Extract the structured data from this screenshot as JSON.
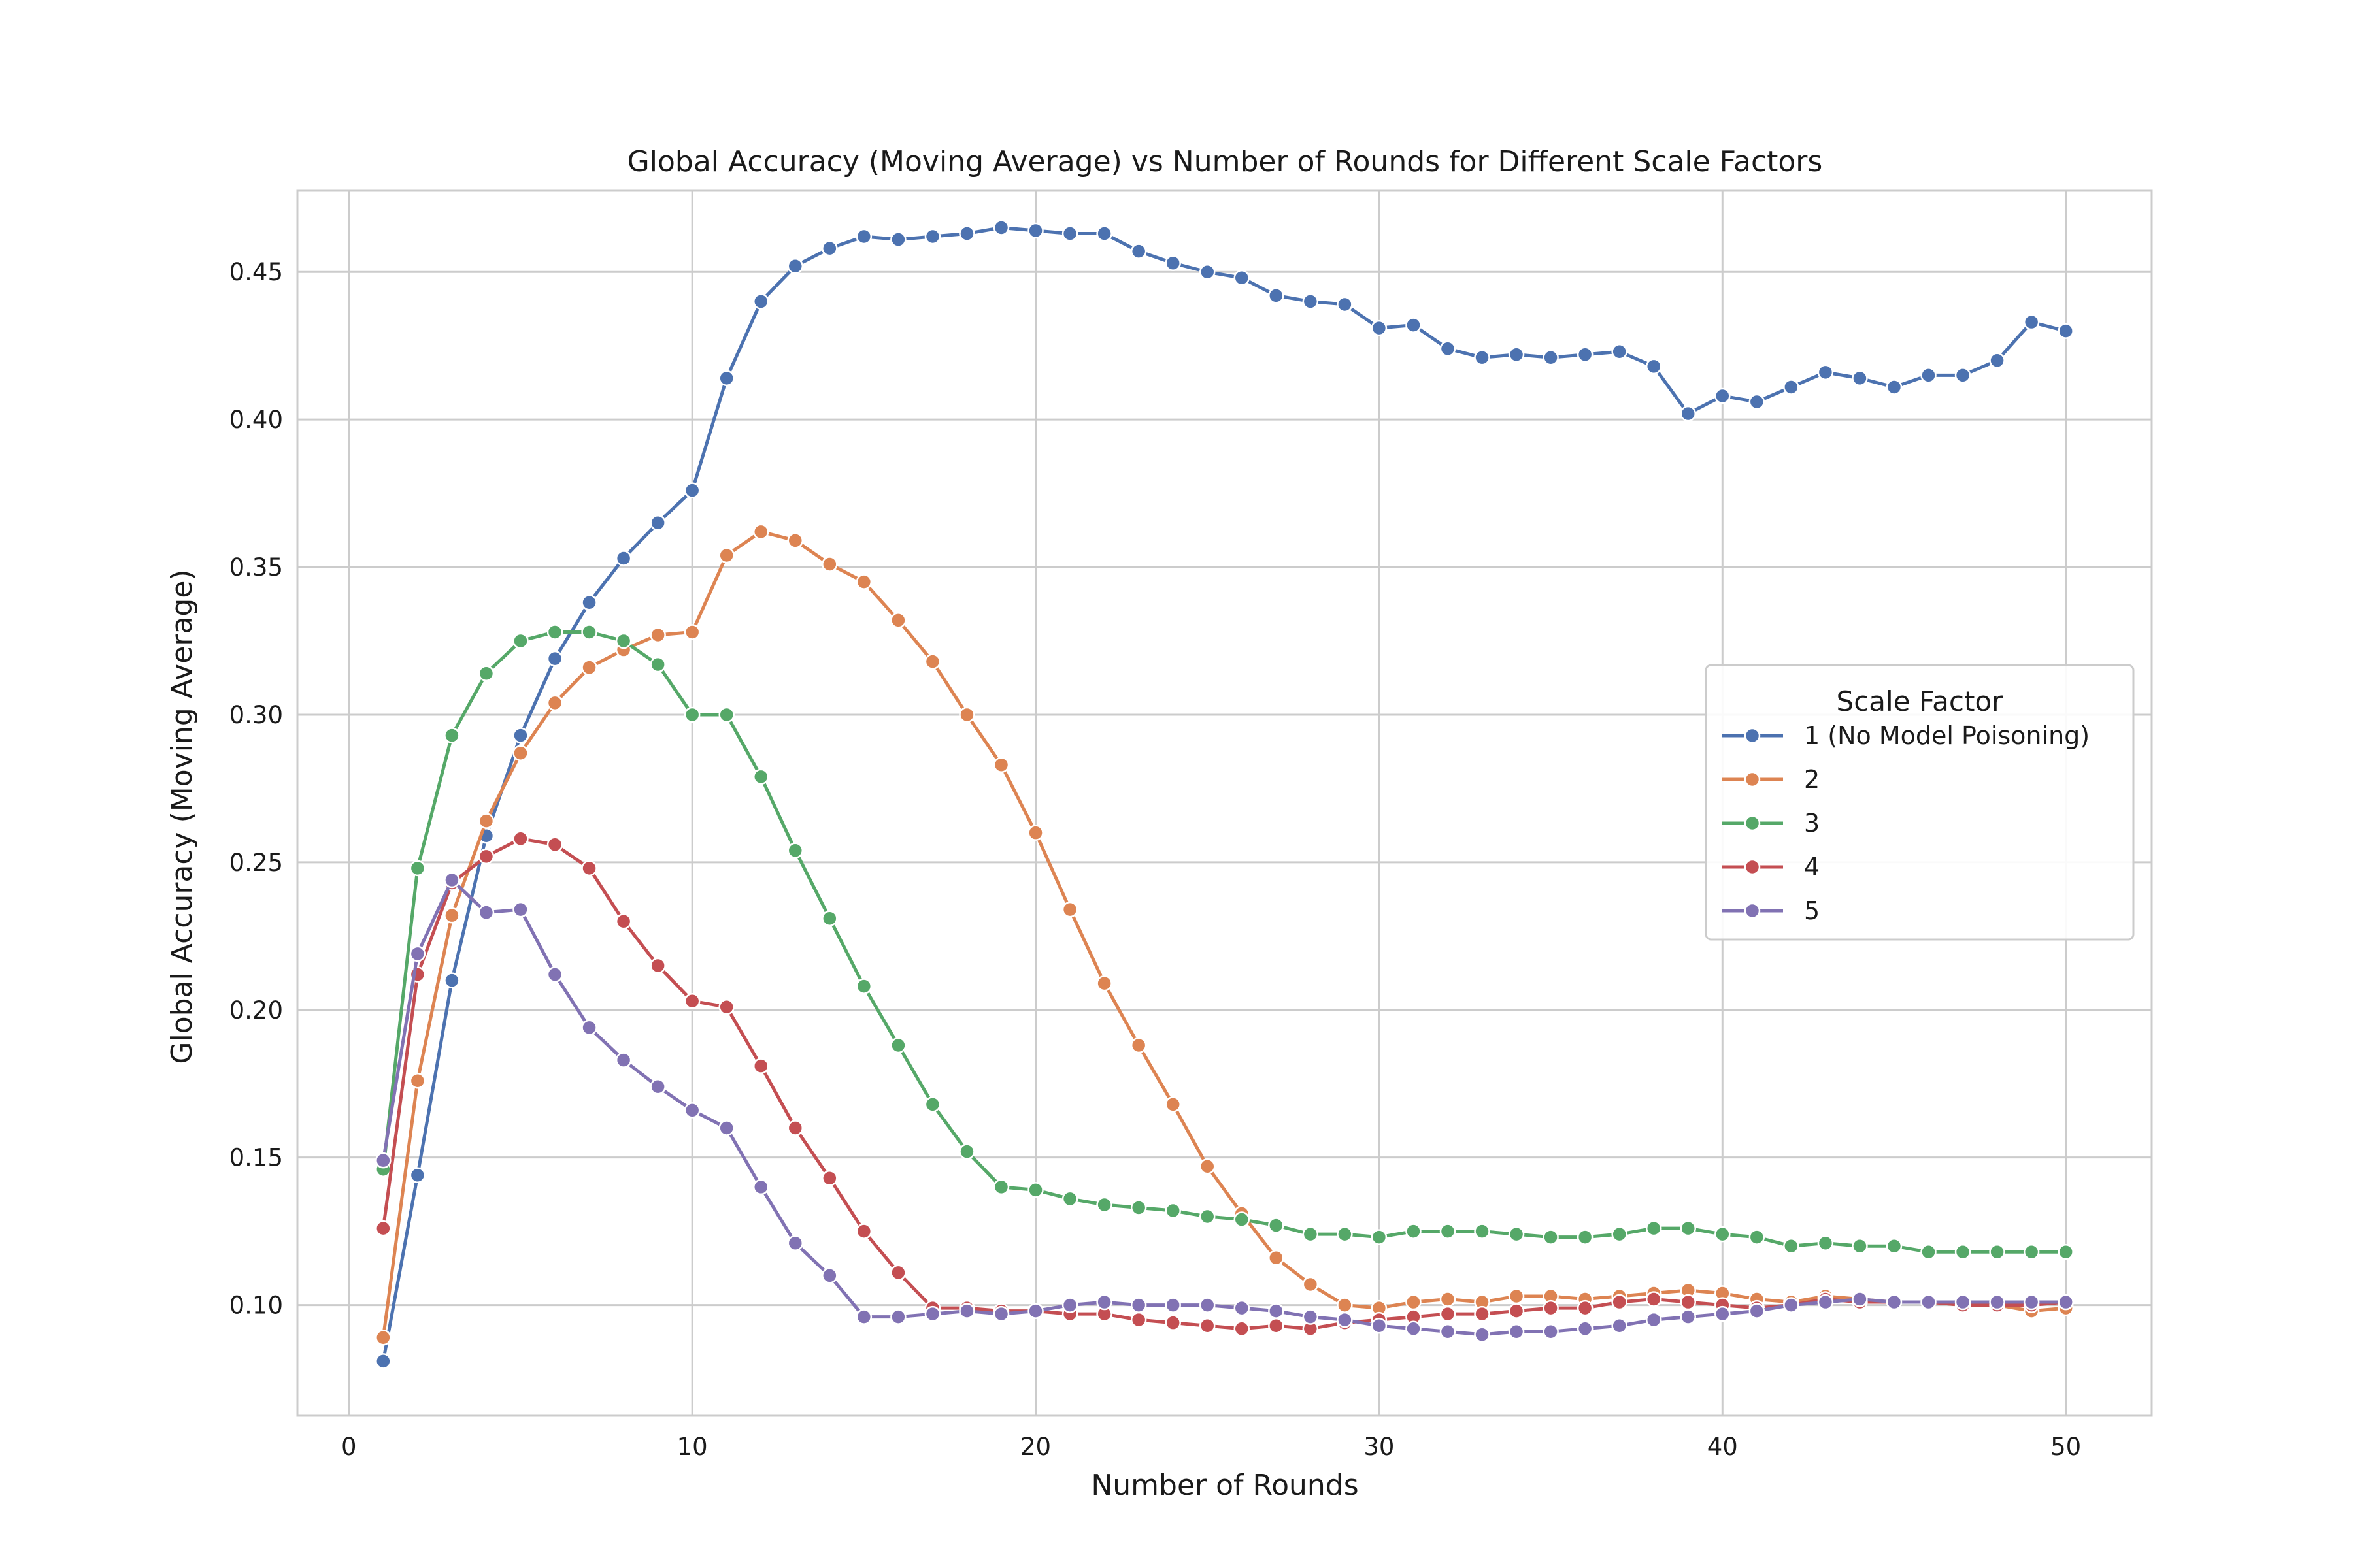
{
  "chart_data": {
    "type": "line",
    "title": "Global Accuracy (Moving Average) vs Number of Rounds for Different Scale Factors",
    "xlabel": "Number of Rounds",
    "ylabel": "Global Accuracy (Moving Average)",
    "xlim": [
      -1.5,
      52.5
    ],
    "ylim": [
      0.0625,
      0.4775
    ],
    "xticks": [
      0,
      10,
      20,
      30,
      40,
      50
    ],
    "xtick_labels": [
      "0",
      "10",
      "20",
      "30",
      "40",
      "50"
    ],
    "yticks": [
      0.1,
      0.15,
      0.2,
      0.25,
      0.3,
      0.35,
      0.4,
      0.45
    ],
    "ytick_labels": [
      "0.10",
      "0.15",
      "0.20",
      "0.25",
      "0.30",
      "0.35",
      "0.40",
      "0.45"
    ],
    "grid": true,
    "legend": {
      "title": "Scale Factor",
      "placement": "center-right"
    },
    "x": [
      1,
      2,
      3,
      4,
      5,
      6,
      7,
      8,
      9,
      10,
      11,
      12,
      13,
      14,
      15,
      16,
      17,
      18,
      19,
      20,
      21,
      22,
      23,
      24,
      25,
      26,
      27,
      28,
      29,
      30,
      31,
      32,
      33,
      34,
      35,
      36,
      37,
      38,
      39,
      40,
      41,
      42,
      43,
      44,
      45,
      46,
      47,
      48,
      49,
      50
    ],
    "series": [
      {
        "name": "1 (No Model Poisoning)",
        "color": "#4c72b0",
        "values": [
          0.081,
          0.144,
          0.21,
          0.259,
          0.293,
          0.319,
          0.338,
          0.353,
          0.365,
          0.376,
          0.414,
          0.44,
          0.452,
          0.458,
          0.462,
          0.461,
          0.462,
          0.463,
          0.465,
          0.464,
          0.463,
          0.463,
          0.457,
          0.453,
          0.45,
          0.448,
          0.442,
          0.44,
          0.439,
          0.431,
          0.432,
          0.424,
          0.421,
          0.422,
          0.421,
          0.422,
          0.423,
          0.418,
          0.402,
          0.408,
          0.406,
          0.411,
          0.416,
          0.414,
          0.411,
          0.415,
          0.415,
          0.42,
          0.433,
          0.43
        ]
      },
      {
        "name": "2",
        "color": "#dd8452",
        "values": [
          0.089,
          0.176,
          0.232,
          0.264,
          0.287,
          0.304,
          0.316,
          0.322,
          0.327,
          0.328,
          0.354,
          0.362,
          0.359,
          0.351,
          0.345,
          0.332,
          0.318,
          0.3,
          0.283,
          0.26,
          0.234,
          0.209,
          0.188,
          0.168,
          0.147,
          0.131,
          0.116,
          0.107,
          0.1,
          0.099,
          0.101,
          0.102,
          0.101,
          0.103,
          0.103,
          0.102,
          0.103,
          0.104,
          0.105,
          0.104,
          0.102,
          0.101,
          0.103,
          0.102,
          0.101,
          0.101,
          0.1,
          0.1,
          0.098,
          0.099
        ]
      },
      {
        "name": "3",
        "color": "#55a868",
        "values": [
          0.146,
          0.248,
          0.293,
          0.314,
          0.325,
          0.328,
          0.328,
          0.325,
          0.317,
          0.3,
          0.3,
          0.279,
          0.254,
          0.231,
          0.208,
          0.188,
          0.168,
          0.152,
          0.14,
          0.139,
          0.136,
          0.134,
          0.133,
          0.132,
          0.13,
          0.129,
          0.127,
          0.124,
          0.124,
          0.123,
          0.125,
          0.125,
          0.125,
          0.124,
          0.123,
          0.123,
          0.124,
          0.126,
          0.126,
          0.124,
          0.123,
          0.12,
          0.121,
          0.12,
          0.12,
          0.118,
          0.118,
          0.118,
          0.118,
          0.118
        ]
      },
      {
        "name": "4",
        "color": "#c44e52",
        "values": [
          0.126,
          0.212,
          0.243,
          0.252,
          0.258,
          0.256,
          0.248,
          0.23,
          0.215,
          0.203,
          0.201,
          0.181,
          0.16,
          0.143,
          0.125,
          0.111,
          0.099,
          0.099,
          0.098,
          0.098,
          0.097,
          0.097,
          0.095,
          0.094,
          0.093,
          0.092,
          0.093,
          0.092,
          0.094,
          0.095,
          0.096,
          0.097,
          0.097,
          0.098,
          0.099,
          0.099,
          0.101,
          0.102,
          0.101,
          0.1,
          0.099,
          0.1,
          0.102,
          0.101,
          0.101,
          0.101,
          0.1,
          0.1,
          0.1,
          0.101
        ]
      },
      {
        "name": "5",
        "color": "#8172b3",
        "values": [
          0.149,
          0.219,
          0.244,
          0.233,
          0.234,
          0.212,
          0.194,
          0.183,
          0.174,
          0.166,
          0.16,
          0.14,
          0.121,
          0.11,
          0.096,
          0.096,
          0.097,
          0.098,
          0.097,
          0.098,
          0.1,
          0.101,
          0.1,
          0.1,
          0.1,
          0.099,
          0.098,
          0.096,
          0.095,
          0.093,
          0.092,
          0.091,
          0.09,
          0.091,
          0.091,
          0.092,
          0.093,
          0.095,
          0.096,
          0.097,
          0.098,
          0.1,
          0.101,
          0.102,
          0.101,
          0.101,
          0.101,
          0.101,
          0.101,
          0.101
        ]
      }
    ]
  }
}
